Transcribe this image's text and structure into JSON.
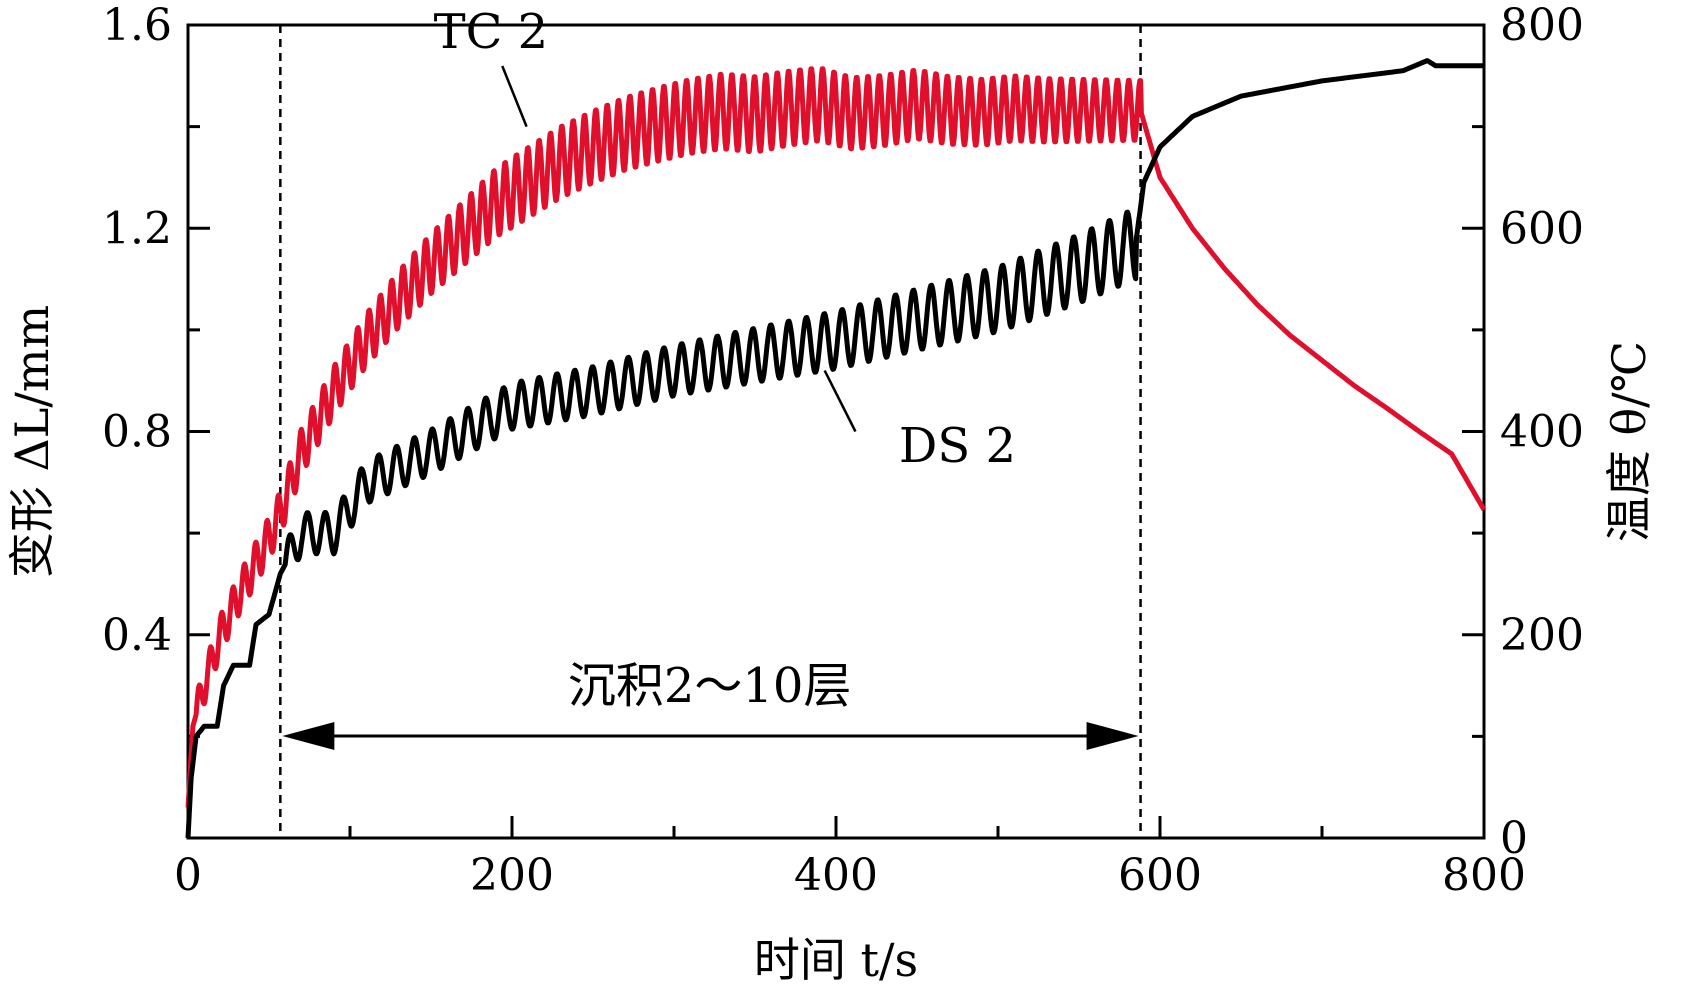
{
  "chart_data": {
    "type": "line",
    "xlabel": "时间 t/s",
    "ylabel_left": "变形 ΔL/mm",
    "ylabel_right": "温度 θ/℃",
    "xlim": [
      0,
      800
    ],
    "ylim_left": [
      0,
      1.6
    ],
    "ylim_right": [
      0,
      800
    ],
    "x_ticks": [
      "0",
      "200",
      "400",
      "600",
      "800"
    ],
    "y_left_ticks": [
      "0.4",
      "0.8",
      "1.2",
      "1.6"
    ],
    "y_right_ticks": [
      "0",
      "200",
      "400",
      "600",
      "800"
    ],
    "grid": false,
    "markers_x": [
      57,
      588
    ],
    "annotations": {
      "tc": "TC 2",
      "ds": "DS 2",
      "range": "沉积2～10层"
    },
    "colors": {
      "tc": "#e0102d",
      "ds": "#000000"
    },
    "series": [
      {
        "name": "TC 2",
        "axis": "right",
        "base": [
          [
            0,
            30
          ],
          [
            3,
            110
          ],
          [
            10,
            150
          ],
          [
            20,
            200
          ],
          [
            30,
            235
          ],
          [
            40,
            265
          ],
          [
            50,
            295
          ],
          [
            57,
            320
          ],
          [
            70,
            380
          ],
          [
            90,
            440
          ],
          [
            110,
            490
          ],
          [
            130,
            530
          ],
          [
            150,
            565
          ],
          [
            170,
            595
          ],
          [
            190,
            625
          ],
          [
            210,
            645
          ],
          [
            230,
            665
          ],
          [
            250,
            680
          ],
          [
            270,
            693
          ],
          [
            290,
            702
          ],
          [
            310,
            710
          ],
          [
            330,
            715
          ],
          [
            350,
            712
          ],
          [
            370,
            718
          ],
          [
            390,
            722
          ],
          [
            410,
            713
          ],
          [
            430,
            716
          ],
          [
            450,
            722
          ],
          [
            470,
            716
          ],
          [
            490,
            714
          ],
          [
            510,
            718
          ],
          [
            530,
            716
          ],
          [
            550,
            716
          ],
          [
            570,
            716
          ],
          [
            588,
            716
          ],
          [
            600,
            650
          ],
          [
            620,
            600
          ],
          [
            640,
            560
          ],
          [
            660,
            525
          ],
          [
            680,
            495
          ],
          [
            700,
            470
          ],
          [
            720,
            445
          ],
          [
            740,
            423
          ],
          [
            760,
            400
          ],
          [
            780,
            378
          ],
          [
            800,
            323
          ]
        ],
        "oscillation_period": 7,
        "oscillation_range": [
          5,
          588
        ],
        "amplitude": [
          [
            5,
            18
          ],
          [
            100,
            25
          ],
          [
            200,
            35
          ],
          [
            350,
            38
          ],
          [
            588,
            30
          ]
        ]
      },
      {
        "name": "DS 2",
        "axis": "left",
        "base": [
          [
            0,
            0.0
          ],
          [
            2,
            0.12
          ],
          [
            5,
            0.2
          ],
          [
            10,
            0.22
          ],
          [
            18,
            0.22
          ],
          [
            22,
            0.3
          ],
          [
            28,
            0.34
          ],
          [
            38,
            0.34
          ],
          [
            42,
            0.42
          ],
          [
            50,
            0.44
          ],
          [
            57,
            0.52
          ],
          [
            70,
            0.6
          ],
          [
            90,
            0.6
          ],
          [
            110,
            0.7
          ],
          [
            150,
            0.76
          ],
          [
            200,
            0.85
          ],
          [
            250,
            0.88
          ],
          [
            300,
            0.92
          ],
          [
            350,
            0.95
          ],
          [
            400,
            0.98
          ],
          [
            450,
            1.02
          ],
          [
            500,
            1.06
          ],
          [
            550,
            1.12
          ],
          [
            585,
            1.17
          ],
          [
            590,
            1.29
          ],
          [
            600,
            1.36
          ],
          [
            620,
            1.42
          ],
          [
            650,
            1.46
          ],
          [
            700,
            1.49
          ],
          [
            750,
            1.51
          ],
          [
            765,
            1.53
          ],
          [
            770,
            1.52
          ],
          [
            800,
            1.52
          ]
        ],
        "oscillation_period": 11,
        "oscillation_range": [
          60,
          585
        ],
        "amplitude": [
          [
            60,
            0.04
          ],
          [
            300,
            0.05
          ],
          [
            585,
            0.07
          ]
        ]
      }
    ]
  }
}
